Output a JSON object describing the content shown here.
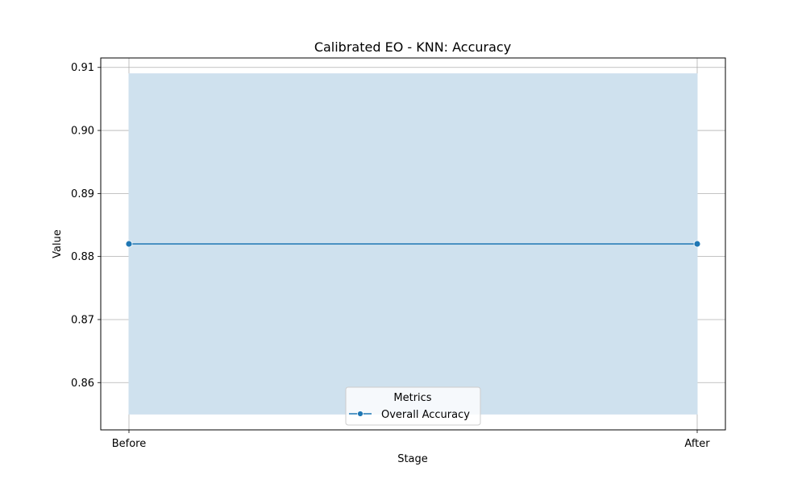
{
  "chart_data": {
    "type": "line",
    "title": "Calibrated EO - KNN: Accuracy",
    "xlabel": "Stage",
    "ylabel": "Value",
    "categories": [
      "Before",
      "After"
    ],
    "series": [
      {
        "name": "Overall Accuracy",
        "values": [
          0.882,
          0.882
        ],
        "band_lower": [
          0.855,
          0.855
        ],
        "band_upper": [
          0.909,
          0.909
        ],
        "color": "#1f77b4",
        "band_color": "#cfe1ee"
      }
    ],
    "ylim": [
      0.8525,
      0.9115
    ],
    "yticks": [
      0.86,
      0.87,
      0.88,
      0.89,
      0.9,
      0.91
    ],
    "ytick_labels": [
      "0.86",
      "0.87",
      "0.88",
      "0.89",
      "0.90",
      "0.91"
    ],
    "grid": true,
    "legend": {
      "title": "Metrics",
      "placement": "lower-center",
      "entries": [
        "Overall Accuracy"
      ]
    }
  }
}
